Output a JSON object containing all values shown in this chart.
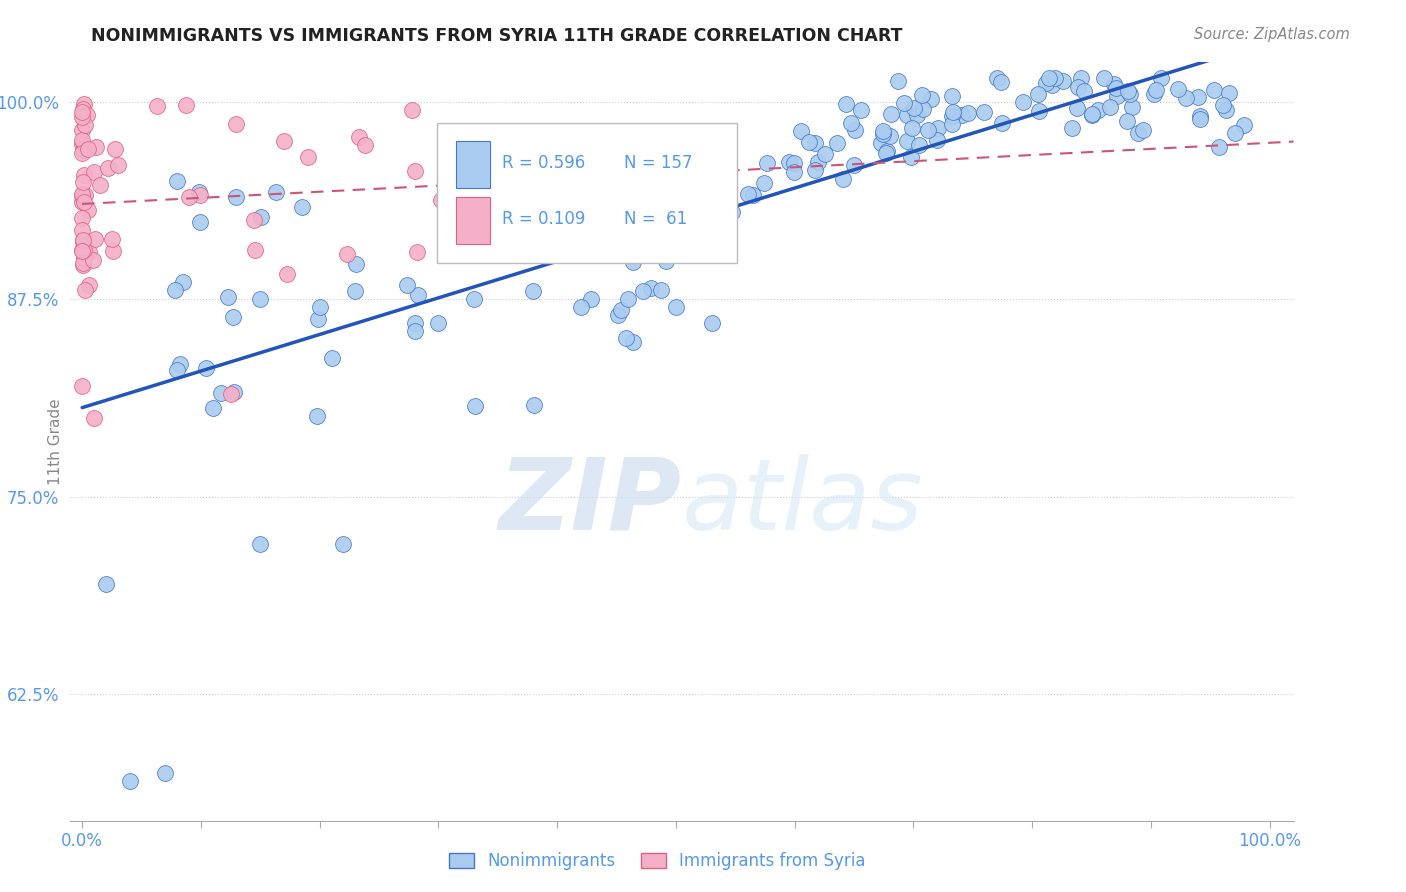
{
  "title": "NONIMMIGRANTS VS IMMIGRANTS FROM SYRIA 11TH GRADE CORRELATION CHART",
  "source": "Source: ZipAtlas.com",
  "ylabel": "11th Grade",
  "blue_R": 0.596,
  "blue_N": 157,
  "pink_R": 0.109,
  "pink_N": 61,
  "blue_color": "#aaccf0",
  "blue_edge_color": "#4477cc",
  "pink_color": "#f4b0c8",
  "pink_edge_color": "#e06080",
  "blue_line_color": "#2255bb",
  "pink_line_color": "#cc5577",
  "title_color": "#222222",
  "axis_label_color": "#5599ee",
  "legend_text_color": "#5599ee",
  "watermark": "ZIPatlas",
  "xlim": [
    -0.01,
    1.02
  ],
  "ylim": [
    0.545,
    1.025
  ],
  "yticks": [
    0.625,
    0.75,
    0.875,
    1.0
  ],
  "ytick_labels": [
    "62.5%",
    "75.0%",
    "87.5%",
    "100.0%"
  ]
}
